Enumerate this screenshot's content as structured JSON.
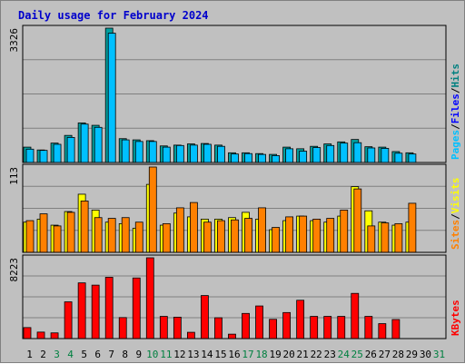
{
  "chart_data": {
    "type": "bar",
    "title": "Daily usage for February 2024",
    "categories": [
      "1",
      "2",
      "3",
      "4",
      "5",
      "6",
      "7",
      "8",
      "9",
      "10",
      "11",
      "12",
      "13",
      "14",
      "15",
      "16",
      "17",
      "18",
      "19",
      "20",
      "21",
      "22",
      "23",
      "24",
      "25",
      "26",
      "27",
      "28",
      "29",
      "30",
      "31"
    ],
    "weekend_days": [
      "3",
      "4",
      "10",
      "11",
      "17",
      "18",
      "24",
      "25",
      "31"
    ],
    "tick_colors": {
      "weekday": "#000000",
      "weekend": "#008040"
    },
    "panels": [
      {
        "id": "hits-files-pages",
        "max_label": "3326",
        "ymax": 3326,
        "legend_parts": [
          {
            "text": "Pages",
            "color": "#00C0FF"
          },
          {
            "text": "/",
            "color": "#000000"
          },
          {
            "text": "Files",
            "color": "#0000FF"
          },
          {
            "text": "/",
            "color": "#000000"
          },
          {
            "text": "Hits",
            "color": "#008080"
          }
        ],
        "series": [
          {
            "name": "Hits",
            "color": "#009F9F",
            "values": [
              380,
              310,
              480,
              670,
              980,
              920,
              3326,
              590,
              560,
              540,
              410,
              430,
              460,
              470,
              430,
              240,
              240,
              220,
              200,
              380,
              340,
              400,
              460,
              510,
              570,
              390,
              380,
              270,
              240,
              null,
              null
            ]
          },
          {
            "name": "Files",
            "color": "#00C0FF",
            "values": [
              330,
              300,
              450,
              620,
              950,
              870,
              3200,
              560,
              520,
              520,
              380,
              420,
              430,
              450,
              400,
              210,
              220,
              200,
              170,
              340,
              280,
              370,
              420,
              480,
              490,
              360,
              350,
              230,
              210,
              null,
              null
            ]
          }
        ]
      },
      {
        "id": "visits-sites",
        "max_label": "113",
        "ymax": 113,
        "legend_parts": [
          {
            "text": "Sites",
            "color": "#FF8000"
          },
          {
            "text": "/",
            "color": "#000000"
          },
          {
            "text": "Visits",
            "color": "#FFFF00"
          }
        ],
        "series": [
          {
            "name": "Visits",
            "color": "#FFFF00",
            "values": [
              40,
              44,
              36,
              54,
              77,
              56,
              40,
              38,
              32,
              90,
              36,
              52,
              47,
              44,
              44,
              46,
              53,
              44,
              30,
              42,
              48,
              42,
              40,
              48,
              87,
              55,
              40,
              36,
              40,
              null,
              null
            ]
          },
          {
            "name": "Sites",
            "color": "#FF8000",
            "values": [
              42,
              51,
              35,
              53,
              68,
              46,
              45,
              46,
              40,
              113,
              38,
              59,
              66,
              40,
              42,
              43,
              45,
              59,
              33,
              47,
              48,
              44,
              45,
              56,
              84,
              35,
              39,
              38,
              65,
              null,
              null
            ]
          }
        ]
      },
      {
        "id": "kbytes",
        "max_label": "8223",
        "ymax": 8223,
        "legend_parts": [
          {
            "text": "KBytes",
            "color": "#FF0000"
          }
        ],
        "series": [
          {
            "name": "KBytes",
            "color": "#FF0000",
            "values": [
              1120,
              660,
              580,
              3740,
              5670,
              5440,
              6240,
              2140,
              6170,
              8223,
              2260,
              2180,
              640,
              4380,
              2120,
              450,
              2560,
              3320,
              1960,
              2650,
              3900,
              2260,
              2260,
              2260,
              4600,
              2260,
              1520,
              1940,
              null,
              null,
              null
            ]
          }
        ]
      }
    ]
  }
}
